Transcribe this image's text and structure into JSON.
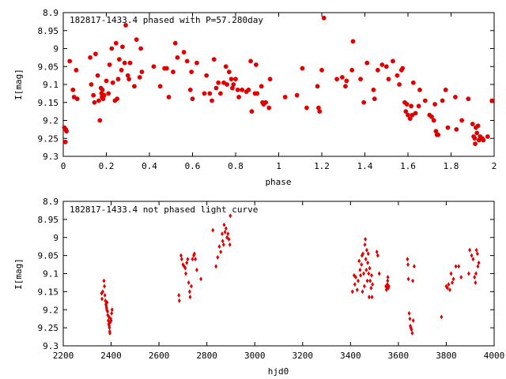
{
  "chart_data": [
    {
      "type": "scatter",
      "title": "182817-1433.4 phased with P=57.280day",
      "xlabel": "phase",
      "ylabel": "I[mag]",
      "xlim": [
        0,
        2
      ],
      "ylim": [
        8.9,
        9.3
      ],
      "y_inverted": true,
      "grid": false,
      "xticks": [
        "0",
        "0.2",
        "0.4",
        "0.6",
        "0.8",
        "1",
        "1.2",
        "1.4",
        "1.6",
        "1.8",
        "2"
      ],
      "yticks": [
        "8.9",
        "8.95",
        "9",
        "9.05",
        "9.1",
        "9.15",
        "9.2",
        "9.25",
        "9.3"
      ],
      "color": "#e00000",
      "marker": "filled-circle",
      "points": [
        [
          0.005,
          9.22
        ],
        [
          0.01,
          9.26
        ],
        [
          0.012,
          9.225
        ],
        [
          0.015,
          9.23
        ],
        [
          0.03,
          9.035
        ],
        [
          0.045,
          9.115
        ],
        [
          0.05,
          9.135
        ],
        [
          0.06,
          9.06
        ],
        [
          0.065,
          9.14
        ],
        [
          0.125,
          9.025
        ],
        [
          0.13,
          9.1
        ],
        [
          0.14,
          9.13
        ],
        [
          0.145,
          9.15
        ],
        [
          0.15,
          9.015
        ],
        [
          0.16,
          9.075
        ],
        [
          0.165,
          9.145
        ],
        [
          0.17,
          9.2
        ],
        [
          0.175,
          9.11
        ],
        [
          0.178,
          9.125
        ],
        [
          0.18,
          9.135
        ],
        [
          0.182,
          9.115
        ],
        [
          0.185,
          9.14
        ],
        [
          0.19,
          9.13
        ],
        [
          0.2,
          9.09
        ],
        [
          0.21,
          9.125
        ],
        [
          0.215,
          9.045
        ],
        [
          0.225,
          9.0
        ],
        [
          0.23,
          9.095
        ],
        [
          0.24,
          9.145
        ],
        [
          0.245,
          8.985
        ],
        [
          0.25,
          9.14
        ],
        [
          0.255,
          9.085
        ],
        [
          0.26,
          9.03
        ],
        [
          0.27,
          9.06
        ],
        [
          0.275,
          8.995
        ],
        [
          0.285,
          9.04
        ],
        [
          0.29,
          8.935
        ],
        [
          0.3,
          9.075
        ],
        [
          0.305,
          9.085
        ],
        [
          0.31,
          9.04
        ],
        [
          0.33,
          9.105
        ],
        [
          0.34,
          8.975
        ],
        [
          0.355,
          9.08
        ],
        [
          0.36,
          9.0
        ],
        [
          0.365,
          9.065
        ],
        [
          0.42,
          9.05
        ],
        [
          0.45,
          9.105
        ],
        [
          0.47,
          9.055
        ],
        [
          0.48,
          9.055
        ],
        [
          0.49,
          9.135
        ],
        [
          0.51,
          9.065
        ],
        [
          0.52,
          8.985
        ],
        [
          0.53,
          9.025
        ],
        [
          0.56,
          9.01
        ],
        [
          0.575,
          9.035
        ],
        [
          0.59,
          9.115
        ],
        [
          0.595,
          9.065
        ],
        [
          0.6,
          9.14
        ],
        [
          0.62,
          9.04
        ],
        [
          0.655,
          9.125
        ],
        [
          0.665,
          9.075
        ],
        [
          0.68,
          9.125
        ],
        [
          0.69,
          9.145
        ],
        [
          0.7,
          9.03
        ],
        [
          0.71,
          9.11
        ],
        [
          0.72,
          9.095
        ],
        [
          0.73,
          9.125
        ],
        [
          0.745,
          9.095
        ],
        [
          0.755,
          9.05
        ],
        [
          0.76,
          9.1
        ],
        [
          0.77,
          9.065
        ],
        [
          0.78,
          9.085
        ],
        [
          0.785,
          9.11
        ],
        [
          0.79,
          9.1
        ],
        [
          0.8,
          9.085
        ],
        [
          0.81,
          9.115
        ],
        [
          0.815,
          9.135
        ],
        [
          0.83,
          9.115
        ],
        [
          0.85,
          9.12
        ],
        [
          0.86,
          9.115
        ],
        [
          0.87,
          9.035
        ],
        [
          0.875,
          9.175
        ],
        [
          0.89,
          9.125
        ],
        [
          0.895,
          9.045
        ],
        [
          0.9,
          9.125
        ],
        [
          0.92,
          9.105
        ],
        [
          0.925,
          9.15
        ],
        [
          0.93,
          9.155
        ],
        [
          0.94,
          9.15
        ],
        [
          0.955,
          9.165
        ],
        [
          0.96,
          9.085
        ],
        [
          1.03,
          9.135
        ],
        [
          1.085,
          9.13
        ],
        [
          1.11,
          9.055
        ],
        [
          1.13,
          9.165
        ],
        [
          1.18,
          9.105
        ],
        [
          1.185,
          9.165
        ],
        [
          1.19,
          9.175
        ],
        [
          1.2,
          9.06
        ],
        [
          1.21,
          8.915
        ],
        [
          1.27,
          9.085
        ],
        [
          1.295,
          9.08
        ],
        [
          1.31,
          9.105
        ],
        [
          1.315,
          9.09
        ],
        [
          1.34,
          9.06
        ],
        [
          1.345,
          8.98
        ],
        [
          1.38,
          9.085
        ],
        [
          1.395,
          9.15
        ],
        [
          1.41,
          9.04
        ],
        [
          1.44,
          9.115
        ],
        [
          1.445,
          9.14
        ],
        [
          1.46,
          9.06
        ],
        [
          1.48,
          9.045
        ],
        [
          1.5,
          9.05
        ],
        [
          1.51,
          9.085
        ],
        [
          1.53,
          9.035
        ],
        [
          1.55,
          9.075
        ],
        [
          1.56,
          9.1
        ],
        [
          1.57,
          9.06
        ],
        [
          1.575,
          9.055
        ],
        [
          1.585,
          9.15
        ],
        [
          1.59,
          9.175
        ],
        [
          1.595,
          9.155
        ],
        [
          1.6,
          9.185
        ],
        [
          1.61,
          9.195
        ],
        [
          1.615,
          9.16
        ],
        [
          1.62,
          9.185
        ],
        [
          1.625,
          9.095
        ],
        [
          1.635,
          9.18
        ],
        [
          1.65,
          9.16
        ],
        [
          1.655,
          9.115
        ],
        [
          1.68,
          9.145
        ],
        [
          1.7,
          9.185
        ],
        [
          1.71,
          9.19
        ],
        [
          1.72,
          9.2
        ],
        [
          1.725,
          9.155
        ],
        [
          1.73,
          9.23
        ],
        [
          1.735,
          9.24
        ],
        [
          1.74,
          9.24
        ],
        [
          1.76,
          9.145
        ],
        [
          1.775,
          9.115
        ],
        [
          1.785,
          9.22
        ],
        [
          1.82,
          9.135
        ],
        [
          1.825,
          9.225
        ],
        [
          1.85,
          9.2
        ],
        [
          1.88,
          9.14
        ],
        [
          1.9,
          9.21
        ],
        [
          1.905,
          9.245
        ],
        [
          1.91,
          9.25
        ],
        [
          1.912,
          9.265
        ],
        [
          1.915,
          9.22
        ],
        [
          1.92,
          9.235
        ],
        [
          1.925,
          9.215
        ],
        [
          1.93,
          9.255
        ],
        [
          1.935,
          9.245
        ],
        [
          1.945,
          9.25
        ],
        [
          1.95,
          9.255
        ],
        [
          1.97,
          9.245
        ],
        [
          1.99,
          9.145
        ]
      ]
    },
    {
      "type": "scatter",
      "title": "182817-1433.4 not phased light curve",
      "xlabel": "hjd0",
      "ylabel": "I[mag]",
      "xlim": [
        2200,
        4000
      ],
      "ylim": [
        8.9,
        9.3
      ],
      "y_inverted": true,
      "grid": false,
      "xticks": [
        "2200",
        "2400",
        "2600",
        "2800",
        "3000",
        "3200",
        "3400",
        "3600",
        "3800",
        "4000"
      ],
      "yticks": [
        "8.9",
        "8.95",
        "9",
        "9.05",
        "9.1",
        "9.15",
        "9.2",
        "9.25",
        "9.3"
      ],
      "color": "#e00000",
      "marker": "small-diamond",
      "points": [
        [
          2360,
          9.155
        ],
        [
          2362,
          9.17
        ],
        [
          2365,
          9.15
        ],
        [
          2370,
          9.12
        ],
        [
          2372,
          9.135
        ],
        [
          2374,
          9.16
        ],
        [
          2376,
          9.175
        ],
        [
          2378,
          9.185
        ],
        [
          2380,
          9.19
        ],
        [
          2381,
          9.195
        ],
        [
          2382,
          9.2
        ],
        [
          2383,
          9.18
        ],
        [
          2385,
          9.205
        ],
        [
          2386,
          9.215
        ],
        [
          2388,
          9.23
        ],
        [
          2390,
          9.24
        ],
        [
          2391,
          9.22
        ],
        [
          2392,
          9.245
        ],
        [
          2393,
          9.25
        ],
        [
          2394,
          9.26
        ],
        [
          2395,
          9.265
        ],
        [
          2396,
          9.235
        ],
        [
          2398,
          9.225
        ],
        [
          2400,
          9.23
        ],
        [
          2402,
          9.21
        ],
        [
          2404,
          9.2
        ],
        [
          2683,
          9.16
        ],
        [
          2685,
          9.175
        ],
        [
          2692,
          9.05
        ],
        [
          2695,
          9.06
        ],
        [
          2700,
          9.075
        ],
        [
          2705,
          9.08
        ],
        [
          2710,
          9.085
        ],
        [
          2712,
          9.1
        ],
        [
          2716,
          9.07
        ],
        [
          2720,
          9.06
        ],
        [
          2724,
          9.125
        ],
        [
          2728,
          9.15
        ],
        [
          2730,
          9.165
        ],
        [
          2735,
          9.135
        ],
        [
          2740,
          9.06
        ],
        [
          2745,
          9.05
        ],
        [
          2748,
          9.045
        ],
        [
          2752,
          9.06
        ],
        [
          2758,
          9.09
        ],
        [
          2775,
          9.115
        ],
        [
          2825,
          8.98
        ],
        [
          2838,
          9.08
        ],
        [
          2845,
          9.055
        ],
        [
          2852,
          9.025
        ],
        [
          2858,
          9.04
        ],
        [
          2864,
          8.99
        ],
        [
          2866,
          9.01
        ],
        [
          2870,
          9.02
        ],
        [
          2872,
          8.965
        ],
        [
          2876,
          8.985
        ],
        [
          2880,
          8.975
        ],
        [
          2884,
          9.0
        ],
        [
          2888,
          8.99
        ],
        [
          2892,
          9.005
        ],
        [
          2896,
          9.02
        ],
        [
          2898,
          8.94
        ],
        [
          3408,
          9.15
        ],
        [
          3415,
          9.105
        ],
        [
          3418,
          9.13
        ],
        [
          3422,
          9.11
        ],
        [
          3428,
          9.145
        ],
        [
          3432,
          9.12
        ],
        [
          3436,
          9.065
        ],
        [
          3440,
          9.09
        ],
        [
          3442,
          9.105
        ],
        [
          3446,
          9.075
        ],
        [
          3448,
          9.05
        ],
        [
          3450,
          9.15
        ],
        [
          3452,
          9.045
        ],
        [
          3455,
          9.1
        ],
        [
          3458,
          9.135
        ],
        [
          3460,
          9.02
        ],
        [
          3462,
          9.005
        ],
        [
          3464,
          9.06
        ],
        [
          3466,
          9.09
        ],
        [
          3468,
          9.035
        ],
        [
          3470,
          9.12
        ],
        [
          3472,
          9.07
        ],
        [
          3474,
          9.045
        ],
        [
          3476,
          9.1
        ],
        [
          3478,
          9.165
        ],
        [
          3480,
          9.085
        ],
        [
          3482,
          9.12
        ],
        [
          3486,
          9.14
        ],
        [
          3488,
          9.105
        ],
        [
          3490,
          9.165
        ],
        [
          3492,
          9.13
        ],
        [
          3510,
          9.04
        ],
        [
          3514,
          9.05
        ],
        [
          3520,
          9.1
        ],
        [
          3548,
          9.135
        ],
        [
          3550,
          9.145
        ],
        [
          3552,
          9.14
        ],
        [
          3554,
          9.13
        ],
        [
          3555,
          9.12
        ],
        [
          3556,
          9.11
        ],
        [
          3558,
          9.14
        ],
        [
          3560,
          9.135
        ],
        [
          3638,
          9.06
        ],
        [
          3640,
          9.075
        ],
        [
          3642,
          9.115
        ],
        [
          3645,
          9.21
        ],
        [
          3648,
          9.225
        ],
        [
          3650,
          9.245
        ],
        [
          3652,
          9.25
        ],
        [
          3655,
          9.255
        ],
        [
          3658,
          9.265
        ],
        [
          3660,
          9.12
        ],
        [
          3662,
          9.23
        ],
        [
          3666,
          9.08
        ],
        [
          3780,
          9.22
        ],
        [
          3800,
          9.135
        ],
        [
          3805,
          9.14
        ],
        [
          3810,
          9.13
        ],
        [
          3815,
          9.145
        ],
        [
          3820,
          9.1
        ],
        [
          3825,
          9.125
        ],
        [
          3830,
          9.115
        ],
        [
          3840,
          9.08
        ],
        [
          3852,
          9.08
        ],
        [
          3862,
          9.11
        ],
        [
          3894,
          9.1
        ],
        [
          3898,
          9.035
        ],
        [
          3906,
          9.05
        ],
        [
          3912,
          9.06
        ],
        [
          3918,
          9.11
        ],
        [
          3922,
          9.125
        ],
        [
          3924,
          9.1
        ],
        [
          3926,
          9.035
        ],
        [
          3930,
          9.045
        ],
        [
          3932,
          9.08
        ],
        [
          3936,
          9.07
        ]
      ]
    }
  ]
}
